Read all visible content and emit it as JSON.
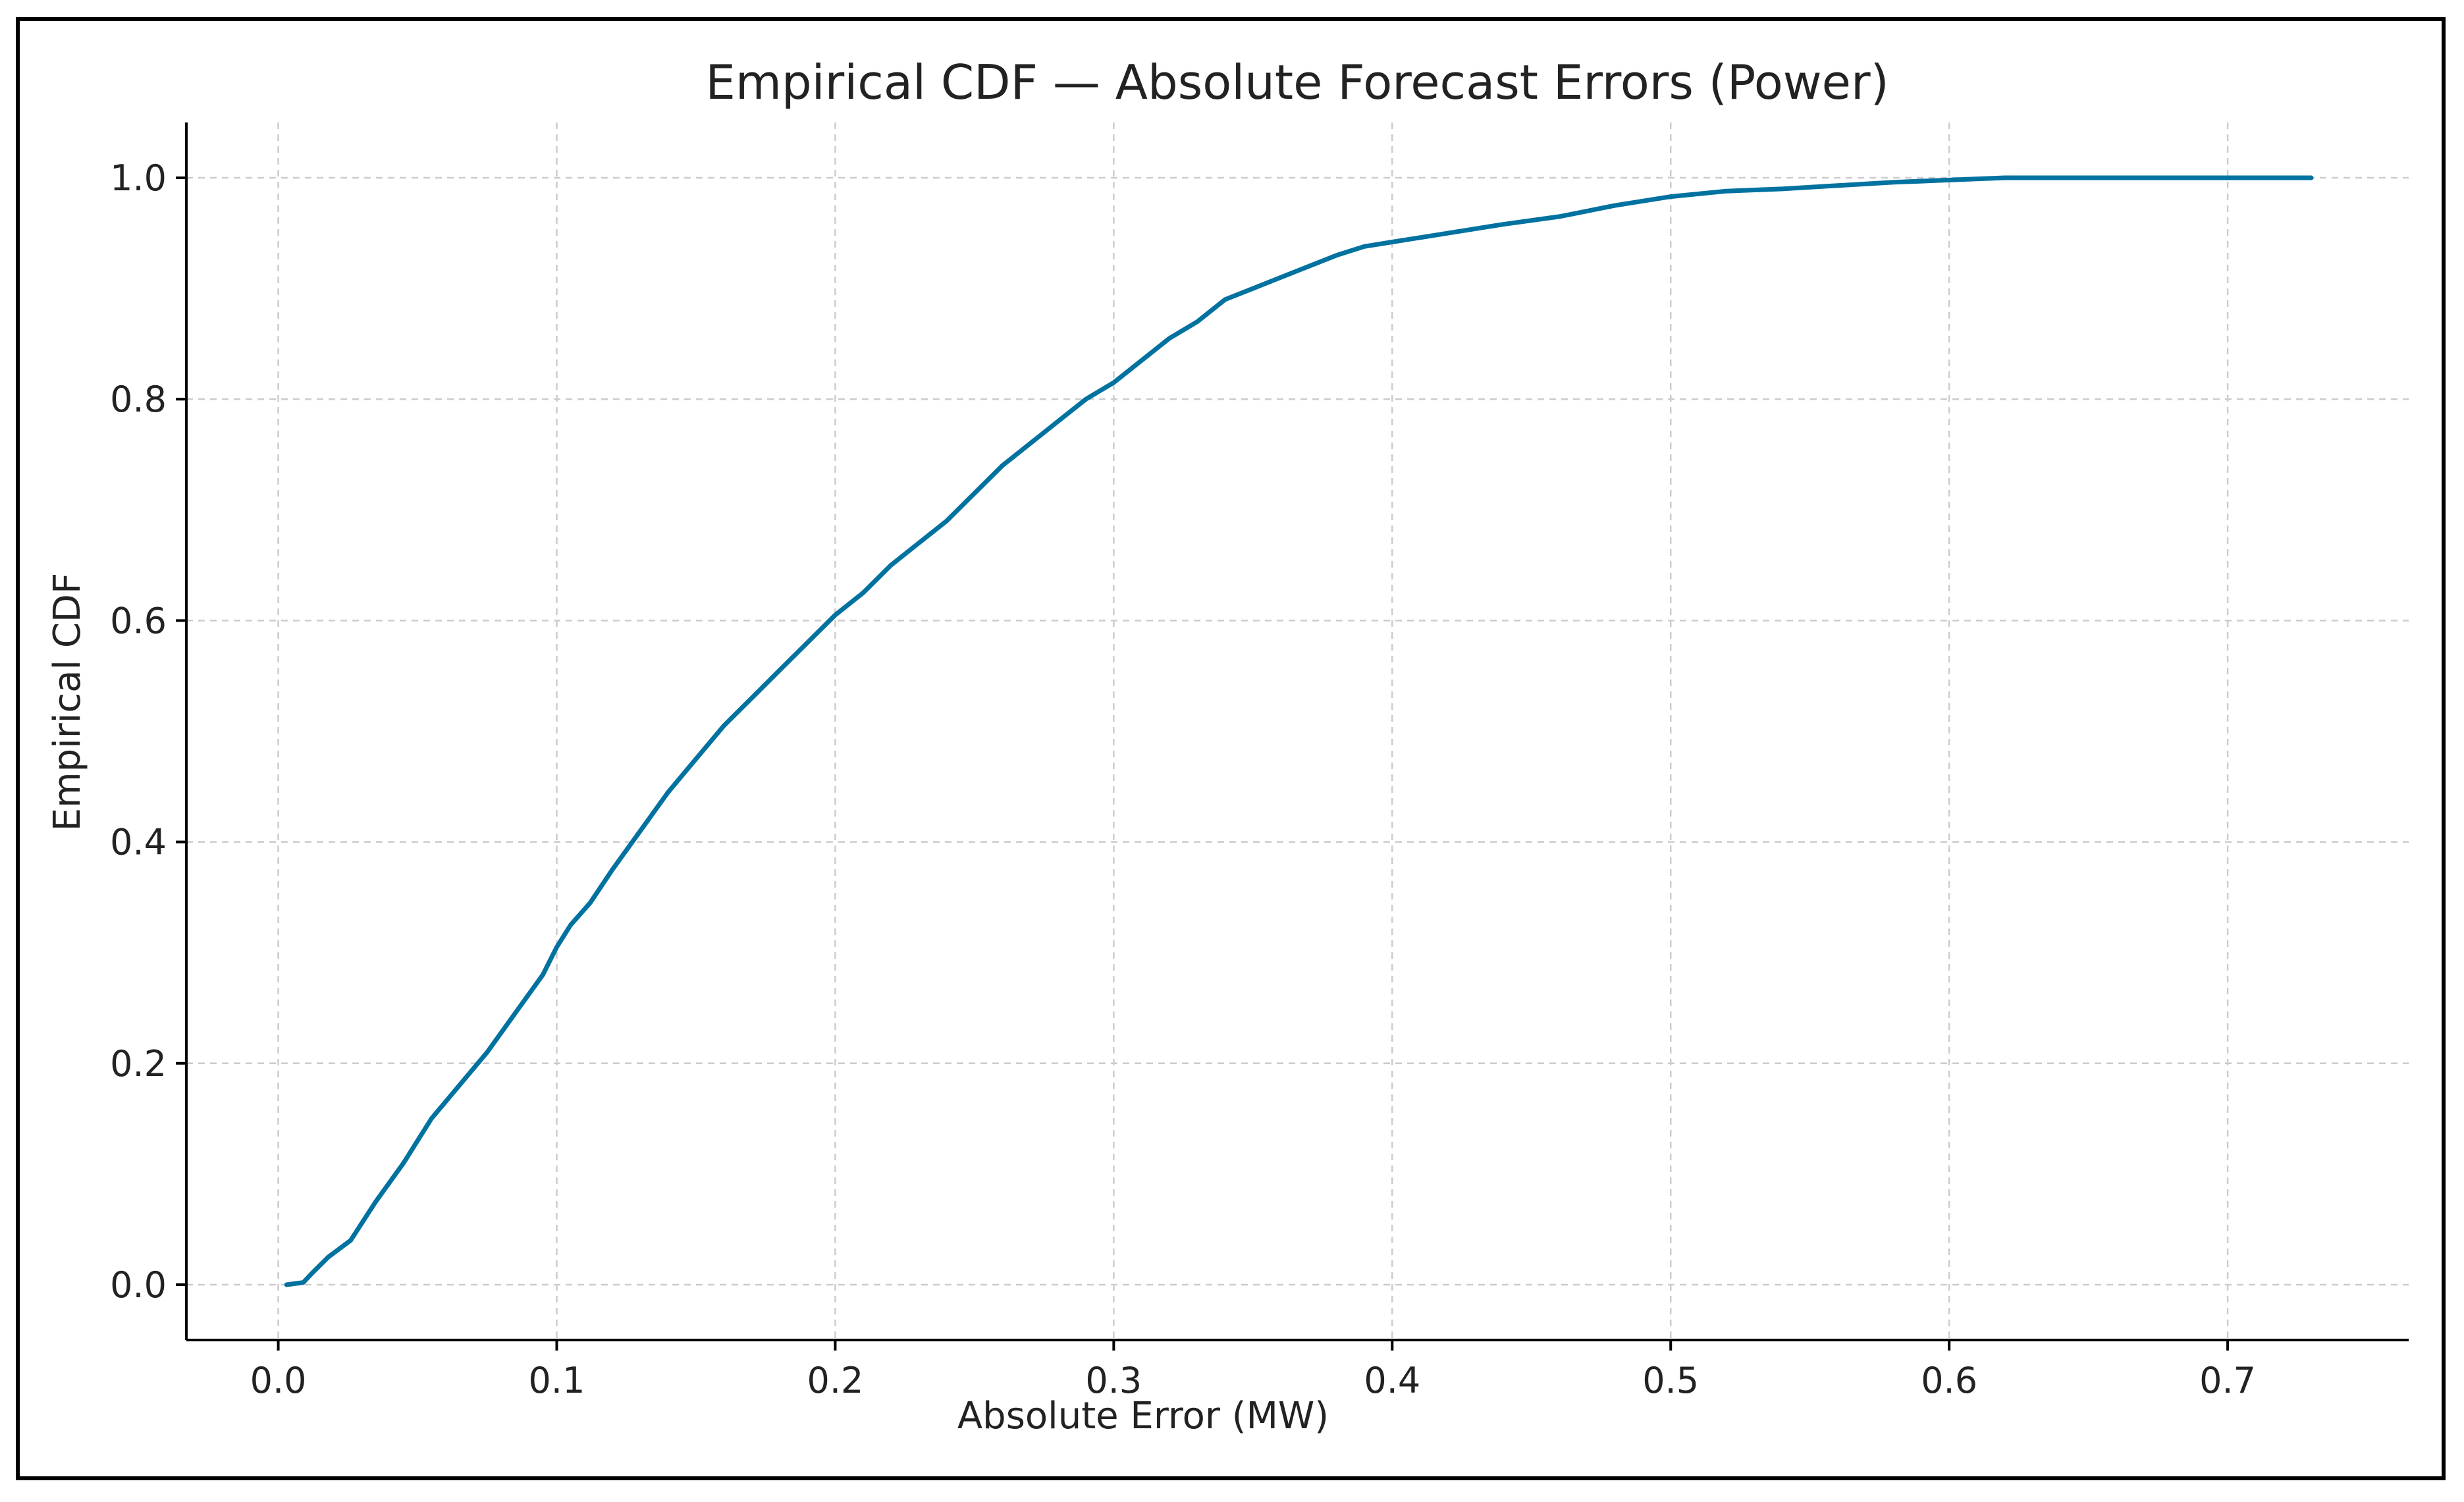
{
  "chart_data": {
    "type": "line",
    "title": "Empirical CDF — Absolute Forecast Errors (Power)",
    "xlabel": "Absolute Error (MW)",
    "ylabel": "Empirical CDF",
    "xlim": [
      -0.033,
      0.765
    ],
    "ylim": [
      -0.05,
      1.05
    ],
    "xticks": [
      "0.0",
      "0.1",
      "0.2",
      "0.3",
      "0.4",
      "0.5",
      "0.6",
      "0.7"
    ],
    "yticks": [
      "0.0",
      "0.2",
      "0.4",
      "0.6",
      "0.8",
      "1.0"
    ],
    "grid": true,
    "legend": "none",
    "line_color": "#0072a0",
    "series": [
      {
        "x": [
          0.003,
          0.009,
          0.012,
          0.018,
          0.026,
          0.035,
          0.045,
          0.055,
          0.065,
          0.075,
          0.085,
          0.095,
          0.1,
          0.105,
          0.112,
          0.12,
          0.13,
          0.14,
          0.15,
          0.16,
          0.17,
          0.18,
          0.19,
          0.2,
          0.21,
          0.22,
          0.23,
          0.24,
          0.25,
          0.26,
          0.27,
          0.28,
          0.29,
          0.3,
          0.31,
          0.32,
          0.33,
          0.34,
          0.35,
          0.36,
          0.37,
          0.38,
          0.39,
          0.4,
          0.42,
          0.44,
          0.46,
          0.48,
          0.5,
          0.52,
          0.54,
          0.56,
          0.58,
          0.6,
          0.62,
          0.65,
          0.68,
          0.71,
          0.73
        ],
        "y": [
          0.0,
          0.002,
          0.01,
          0.025,
          0.04,
          0.075,
          0.11,
          0.15,
          0.18,
          0.21,
          0.245,
          0.28,
          0.305,
          0.325,
          0.345,
          0.375,
          0.41,
          0.445,
          0.475,
          0.505,
          0.53,
          0.555,
          0.58,
          0.605,
          0.625,
          0.65,
          0.67,
          0.69,
          0.715,
          0.74,
          0.76,
          0.78,
          0.8,
          0.815,
          0.835,
          0.855,
          0.87,
          0.89,
          0.9,
          0.91,
          0.92,
          0.93,
          0.938,
          0.942,
          0.95,
          0.958,
          0.965,
          0.975,
          0.983,
          0.988,
          0.99,
          0.993,
          0.996,
          0.998,
          1.0,
          1.0,
          1.0,
          1.0,
          1.0
        ]
      }
    ]
  }
}
